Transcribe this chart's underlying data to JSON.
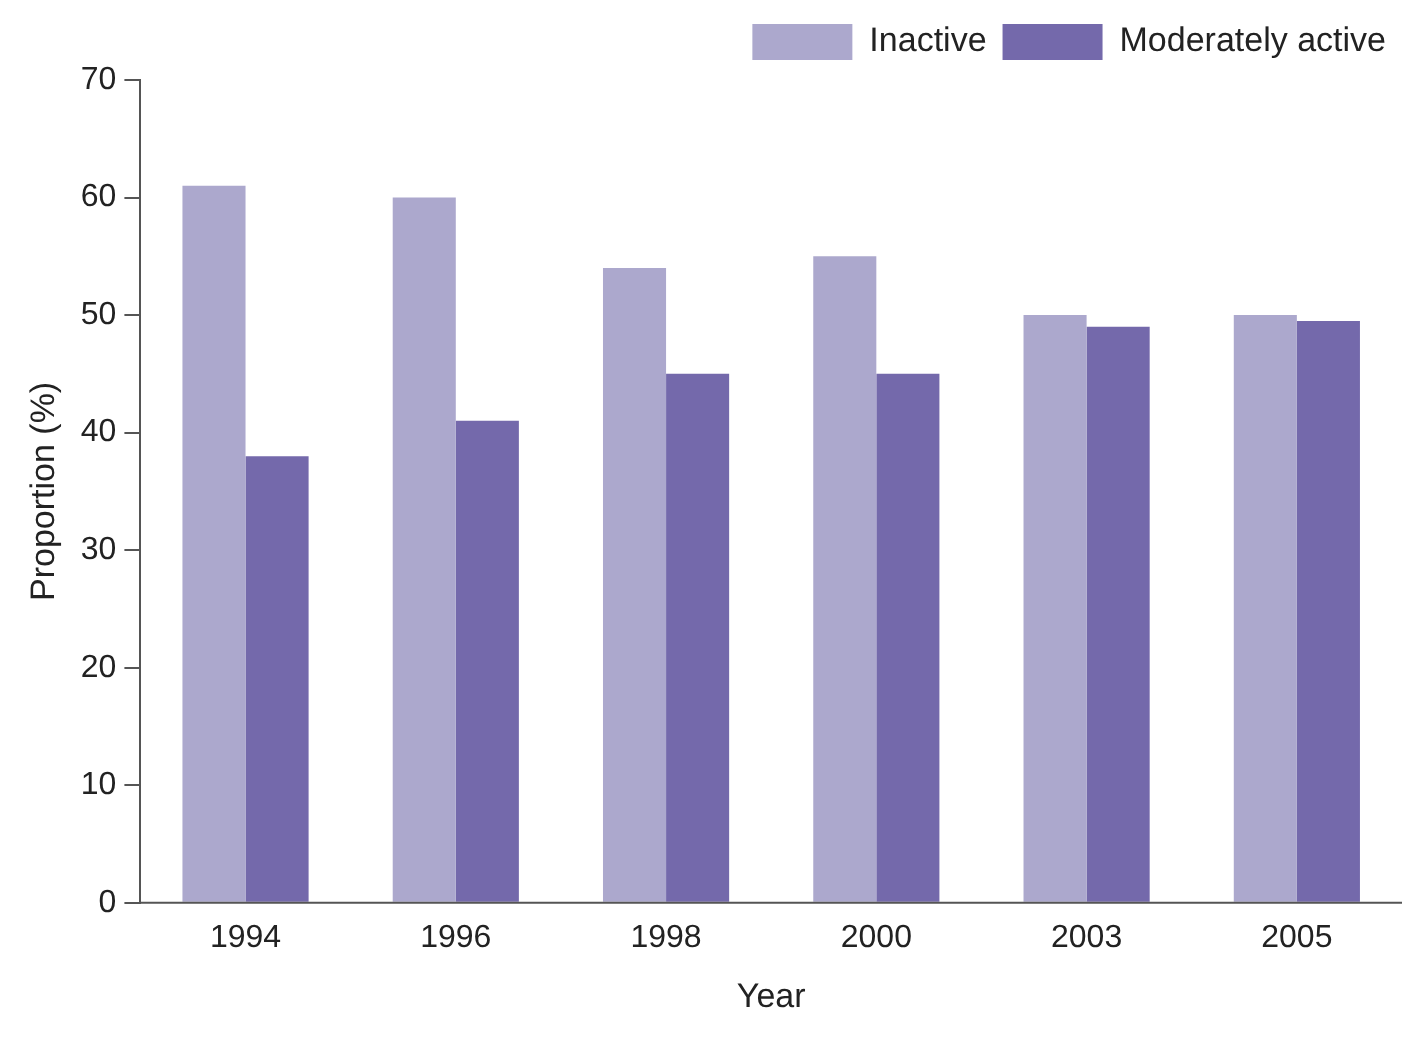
{
  "chart_data": {
    "type": "bar",
    "xlabel": "Year",
    "ylabel": "Proportion (%)",
    "categories": [
      "1994",
      "1996",
      "1998",
      "2000",
      "2003",
      "2005"
    ],
    "series": [
      {
        "name": "Inactive",
        "color": "#aca8cd",
        "values": [
          61,
          60,
          54,
          55,
          50,
          50
        ]
      },
      {
        "name": "Moderately active",
        "color": "#7469ab",
        "values": [
          38,
          41,
          45,
          45,
          49,
          49.5
        ]
      }
    ],
    "ylim": [
      0,
      70
    ],
    "yticks": [
      0,
      10,
      20,
      30,
      40,
      50,
      60,
      70
    ],
    "grid": false,
    "legend": "top right"
  }
}
